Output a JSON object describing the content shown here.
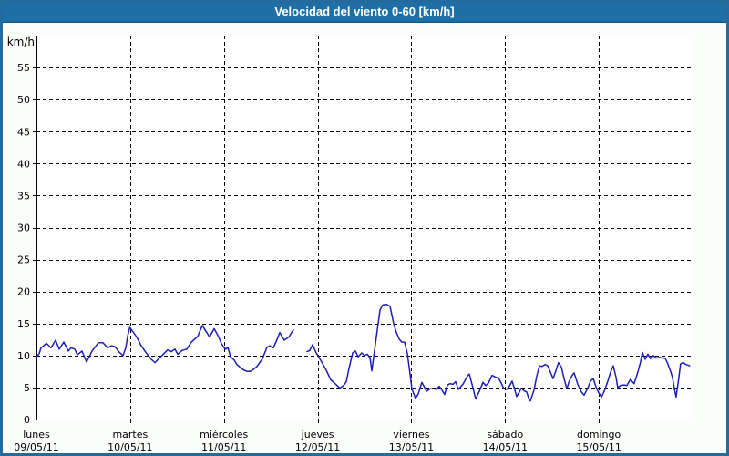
{
  "window": {
    "title": "Velocidad del viento 0-60 [km/h]"
  },
  "colors": {
    "titlebar_bg": "#1d6fa5",
    "titlebar_text": "#ffffff",
    "frame_border": "#246a9c",
    "background": "#fbfdfa",
    "plot_bg": "#fdfefd",
    "grid": "#000000",
    "axis": "#000000",
    "text": "#000000",
    "series": "#1e1eb4"
  },
  "chart_data": {
    "type": "line",
    "title": "Velocidad del viento 0-60 [km/h]",
    "y_unit_label": "km/h",
    "ylim": [
      0,
      60
    ],
    "ytick_step": 5,
    "ytick_labels": [
      "0",
      "5",
      "10",
      "15",
      "20",
      "25",
      "30",
      "35",
      "40",
      "45",
      "50",
      "55"
    ],
    "grid": "dashed",
    "legend": "none",
    "x_days": [
      {
        "name": "lunes",
        "date": "09/05/11"
      },
      {
        "name": "martes",
        "date": "10/05/11"
      },
      {
        "name": "miércoles",
        "date": "11/05/11"
      },
      {
        "name": "jueves",
        "date": "12/05/11"
      },
      {
        "name": "viernes",
        "date": "13/05/11"
      },
      {
        "name": "sábado",
        "date": "14/05/11"
      },
      {
        "name": "domingo",
        "date": "15/05/11"
      }
    ],
    "series": [
      {
        "name": "velocidad-del-viento",
        "unit": "km/h",
        "note": "x = days since Monday 09/05/11 00:00, y = km/h; gap in data late Wednesday",
        "segments": [
          [
            [
              0.0,
              9.8
            ],
            [
              0.029,
              10.3
            ],
            [
              0.049,
              11.2
            ],
            [
              0.107,
              11.9
            ],
            [
              0.156,
              11.2
            ],
            [
              0.204,
              12.4
            ],
            [
              0.243,
              11.0
            ],
            [
              0.292,
              12.1
            ],
            [
              0.34,
              10.7
            ],
            [
              0.369,
              11.2
            ],
            [
              0.408,
              11.0
            ],
            [
              0.437,
              10.1
            ],
            [
              0.486,
              10.7
            ],
            [
              0.535,
              9.0
            ],
            [
              0.593,
              10.7
            ],
            [
              0.661,
              12.0
            ],
            [
              0.71,
              12.0
            ],
            [
              0.758,
              11.2
            ],
            [
              0.797,
              11.5
            ],
            [
              0.836,
              11.4
            ],
            [
              0.885,
              10.5
            ],
            [
              0.924,
              10.0
            ],
            [
              0.953,
              11.2
            ],
            [
              0.975,
              13.2
            ],
            [
              0.996,
              14.4
            ],
            [
              1.04,
              13.5
            ],
            [
              1.069,
              12.9
            ],
            [
              1.118,
              11.5
            ],
            [
              1.186,
              10.1
            ],
            [
              1.225,
              9.4
            ],
            [
              1.264,
              8.9
            ],
            [
              1.312,
              9.6
            ],
            [
              1.361,
              10.3
            ],
            [
              1.4,
              10.9
            ],
            [
              1.439,
              10.6
            ],
            [
              1.478,
              11.0
            ],
            [
              1.507,
              10.2
            ],
            [
              1.556,
              10.8
            ],
            [
              1.604,
              11.0
            ],
            [
              1.653,
              12.1
            ],
            [
              1.721,
              13.0
            ],
            [
              1.769,
              14.7
            ],
            [
              1.808,
              13.8
            ],
            [
              1.847,
              12.9
            ],
            [
              1.896,
              14.2
            ],
            [
              1.944,
              12.9
            ],
            [
              1.973,
              11.9
            ],
            [
              2.003,
              11.2
            ],
            [
              2.022,
              11.0
            ],
            [
              2.042,
              11.3
            ],
            [
              2.071,
              9.8
            ],
            [
              2.11,
              9.3
            ],
            [
              2.139,
              8.6
            ],
            [
              2.178,
              8.1
            ],
            [
              2.217,
              7.7
            ],
            [
              2.256,
              7.5
            ],
            [
              2.294,
              7.6
            ],
            [
              2.353,
              8.3
            ],
            [
              2.411,
              9.5
            ],
            [
              2.46,
              11.3
            ],
            [
              2.489,
              11.5
            ],
            [
              2.528,
              11.2
            ],
            [
              2.567,
              12.5
            ],
            [
              2.596,
              13.6
            ],
            [
              2.644,
              12.4
            ],
            [
              2.693,
              12.9
            ],
            [
              2.722,
              13.6
            ],
            [
              2.742,
              14.0
            ]
          ],
          [
            [
              2.887,
              10.6
            ],
            [
              2.917,
              10.8
            ],
            [
              2.946,
              11.7
            ],
            [
              2.985,
              10.4
            ],
            [
              2.994,
              10.2
            ],
            [
              3.043,
              9.0
            ],
            [
              3.092,
              7.7
            ],
            [
              3.14,
              6.2
            ],
            [
              3.179,
              5.7
            ],
            [
              3.208,
              5.3
            ],
            [
              3.237,
              4.9
            ],
            [
              3.276,
              5.3
            ],
            [
              3.306,
              5.9
            ],
            [
              3.335,
              8.0
            ],
            [
              3.374,
              10.4
            ],
            [
              3.403,
              10.7
            ],
            [
              3.432,
              9.8
            ],
            [
              3.471,
              10.4
            ],
            [
              3.5,
              10.0
            ],
            [
              3.529,
              10.2
            ],
            [
              3.558,
              9.7
            ],
            [
              3.578,
              7.6
            ],
            [
              3.626,
              12.9
            ],
            [
              3.665,
              17.1
            ],
            [
              3.694,
              17.9
            ],
            [
              3.733,
              18.0
            ],
            [
              3.772,
              17.7
            ],
            [
              3.811,
              15.0
            ],
            [
              3.84,
              13.6
            ],
            [
              3.869,
              12.6
            ],
            [
              3.898,
              12.1
            ],
            [
              3.928,
              12.1
            ],
            [
              3.957,
              10.3
            ],
            [
              3.986,
              7.1
            ],
            [
              4.006,
              4.8
            ],
            [
              4.044,
              3.3
            ],
            [
              4.074,
              4.0
            ],
            [
              4.112,
              5.8
            ],
            [
              4.142,
              5.0
            ],
            [
              4.161,
              4.4
            ],
            [
              4.2,
              4.8
            ],
            [
              4.239,
              4.8
            ],
            [
              4.268,
              4.7
            ],
            [
              4.297,
              5.2
            ],
            [
              4.326,
              4.6
            ],
            [
              4.355,
              3.9
            ],
            [
              4.385,
              5.4
            ],
            [
              4.414,
              5.6
            ],
            [
              4.443,
              5.5
            ],
            [
              4.472,
              5.9
            ],
            [
              4.501,
              4.7
            ],
            [
              4.55,
              5.5
            ],
            [
              4.598,
              6.8
            ],
            [
              4.618,
              7.1
            ],
            [
              4.647,
              5.5
            ],
            [
              4.686,
              3.2
            ],
            [
              4.725,
              4.4
            ],
            [
              4.764,
              5.8
            ],
            [
              4.793,
              5.3
            ],
            [
              4.822,
              5.7
            ],
            [
              4.861,
              6.9
            ],
            [
              4.9,
              6.6
            ],
            [
              4.929,
              6.5
            ],
            [
              4.958,
              5.7
            ],
            [
              4.987,
              4.8
            ],
            [
              5.017,
              4.7
            ],
            [
              5.046,
              5.2
            ],
            [
              5.075,
              6.0
            ],
            [
              5.104,
              4.6
            ],
            [
              5.123,
              3.6
            ],
            [
              5.153,
              4.3
            ],
            [
              5.172,
              4.9
            ],
            [
              5.201,
              4.5
            ],
            [
              5.23,
              4.3
            ],
            [
              5.25,
              3.4
            ],
            [
              5.269,
              2.9
            ],
            [
              5.308,
              4.6
            ],
            [
              5.337,
              6.7
            ],
            [
              5.366,
              8.4
            ],
            [
              5.395,
              8.3
            ],
            [
              5.425,
              8.6
            ],
            [
              5.454,
              8.4
            ],
            [
              5.483,
              7.4
            ],
            [
              5.512,
              6.4
            ],
            [
              5.541,
              7.6
            ],
            [
              5.57,
              8.9
            ],
            [
              5.6,
              8.2
            ],
            [
              5.629,
              6.4
            ],
            [
              5.658,
              4.8
            ],
            [
              5.687,
              6.1
            ],
            [
              5.716,
              6.9
            ],
            [
              5.736,
              7.3
            ],
            [
              5.775,
              5.5
            ],
            [
              5.814,
              4.3
            ],
            [
              5.843,
              3.8
            ],
            [
              5.882,
              4.9
            ],
            [
              5.911,
              6.0
            ],
            [
              5.94,
              6.4
            ],
            [
              5.969,
              5.1
            ],
            [
              5.998,
              4.2
            ],
            [
              6.028,
              3.5
            ],
            [
              6.057,
              4.4
            ],
            [
              6.096,
              6.0
            ],
            [
              6.125,
              7.4
            ],
            [
              6.154,
              8.4
            ],
            [
              6.183,
              6.6
            ],
            [
              6.202,
              5.0
            ],
            [
              6.231,
              5.3
            ],
            [
              6.27,
              5.4
            ],
            [
              6.299,
              5.3
            ],
            [
              6.338,
              6.3
            ],
            [
              6.358,
              5.9
            ],
            [
              6.377,
              5.6
            ],
            [
              6.416,
              7.4
            ],
            [
              6.445,
              9.0
            ],
            [
              6.464,
              10.5
            ],
            [
              6.494,
              9.4
            ],
            [
              6.523,
              10.2
            ],
            [
              6.552,
              9.5
            ],
            [
              6.581,
              10.0
            ],
            [
              6.61,
              9.6
            ],
            [
              6.649,
              9.7
            ],
            [
              6.678,
              9.6
            ],
            [
              6.707,
              9.6
            ],
            [
              6.736,
              8.7
            ],
            [
              6.766,
              7.5
            ],
            [
              6.785,
              6.6
            ],
            [
              6.804,
              5.0
            ],
            [
              6.824,
              3.5
            ],
            [
              6.853,
              6.5
            ],
            [
              6.872,
              8.7
            ],
            [
              6.901,
              8.9
            ],
            [
              6.93,
              8.6
            ],
            [
              6.969,
              8.4
            ]
          ]
        ]
      }
    ]
  }
}
